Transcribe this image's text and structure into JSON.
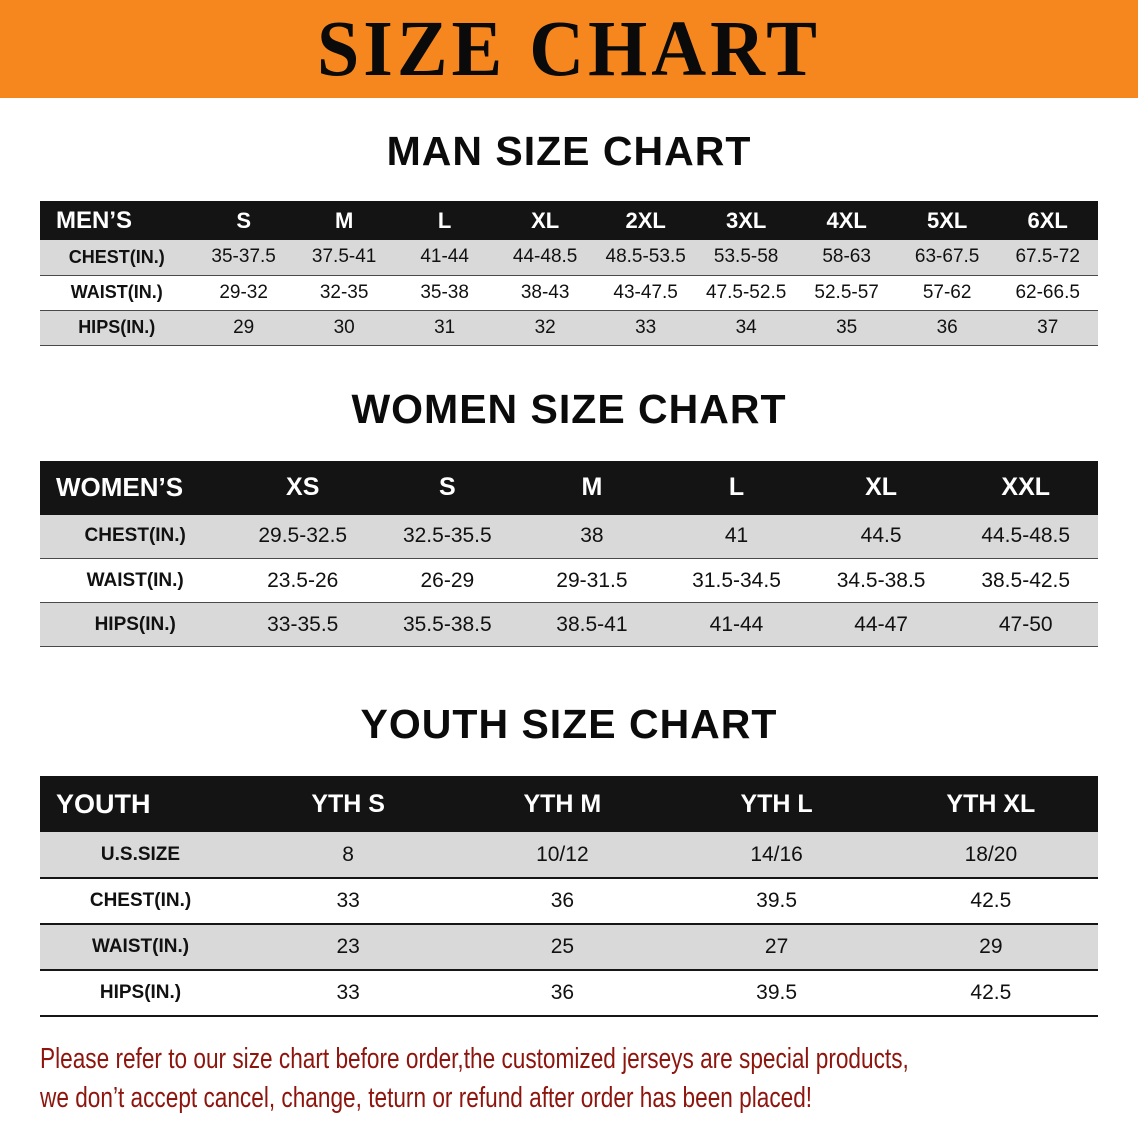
{
  "banner": {
    "title": "SIZE CHART"
  },
  "sections": [
    {
      "id": "men",
      "title": "MAN SIZE CHART",
      "header": [
        "MEN’S",
        "S",
        "M",
        "L",
        "XL",
        "2XL",
        "3XL",
        "4XL",
        "5XL",
        "6XL"
      ],
      "rows": [
        [
          "CHEST(IN.)",
          "35-37.5",
          "37.5-41",
          "41-44",
          "44-48.5",
          "48.5-53.5",
          "53.5-58",
          "58-63",
          "63-67.5",
          "67.5-72"
        ],
        [
          "WAIST(IN.)",
          "29-32",
          "32-35",
          "35-38",
          "38-43",
          "43-47.5",
          "47.5-52.5",
          "52.5-57",
          "57-62",
          "62-66.5"
        ],
        [
          "HIPS(IN.)",
          "29",
          "30",
          "31",
          "32",
          "33",
          "34",
          "35",
          "36",
          "37"
        ]
      ]
    },
    {
      "id": "women",
      "title": "WOMEN SIZE CHART",
      "header": [
        "WOMEN’S",
        "XS",
        "S",
        "M",
        "L",
        "XL",
        "XXL"
      ],
      "rows": [
        [
          "CHEST(IN.)",
          "29.5-32.5",
          "32.5-35.5",
          "38",
          "41",
          "44.5",
          "44.5-48.5"
        ],
        [
          "WAIST(IN.)",
          "23.5-26",
          "26-29",
          "29-31.5",
          "31.5-34.5",
          "34.5-38.5",
          "38.5-42.5"
        ],
        [
          "HIPS(IN.)",
          "33-35.5",
          "35.5-38.5",
          "38.5-41",
          "41-44",
          "44-47",
          "47-50"
        ]
      ]
    },
    {
      "id": "youth",
      "title": "YOUTH SIZE CHART",
      "header": [
        "YOUTH",
        "YTH S",
        "YTH M",
        "YTH L",
        "YTH XL"
      ],
      "rows": [
        [
          "U.S.SIZE",
          "8",
          "10/12",
          "14/16",
          "18/20"
        ],
        [
          "CHEST(IN.)",
          "33",
          "36",
          "39.5",
          "42.5"
        ],
        [
          "WAIST(IN.)",
          "23",
          "25",
          "27",
          "29"
        ],
        [
          "HIPS(IN.)",
          "33",
          "36",
          "39.5",
          "42.5"
        ]
      ]
    }
  ],
  "footer": {
    "line1": "Please refer to our size chart before order,the customized jerseys are special products,",
    "line2": "we don’t accept cancel, change, teturn or refund after order has been placed!"
  },
  "colors": {
    "banner_bg": "#f6871f",
    "table_header_bg": "#141414",
    "row_shade": "#d9d9d9",
    "note_text": "#8e150e"
  }
}
